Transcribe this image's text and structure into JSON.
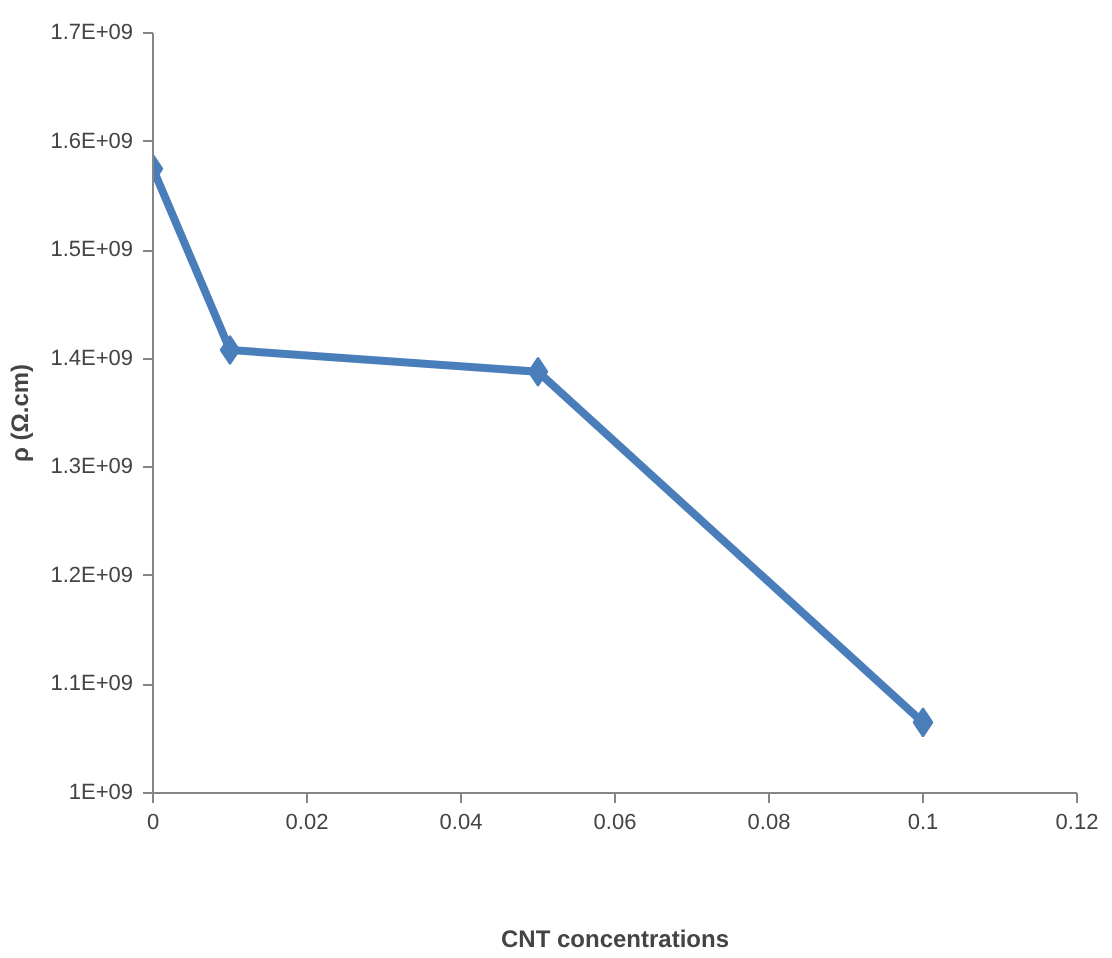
{
  "chart_data": {
    "type": "line",
    "xlabel": "CNT concentrations",
    "ylabel": "ρ (Ω.cm)",
    "x": [
      0,
      0.01,
      0.05,
      0.1
    ],
    "series": [
      {
        "color": "#4a7ebb",
        "values": [
          1575000000,
          1408000000,
          1388000000,
          1065000000
        ]
      }
    ],
    "marker": "diamond",
    "line_style": "solid",
    "grid": false,
    "xlim": [
      0,
      0.12
    ],
    "xticks": [
      0,
      0.02,
      0.04,
      0.06,
      0.08,
      0.1,
      0.12
    ],
    "ylim": [
      1000000000,
      1700000000
    ],
    "yticks": [
      {
        "value": 1000000000,
        "label": "1E+09"
      },
      {
        "value": 1100000000,
        "label": "1.1E+09"
      },
      {
        "value": 1200000000,
        "label": "1.2E+09"
      },
      {
        "value": 1300000000,
        "label": "1.3E+09"
      },
      {
        "value": 1400000000,
        "label": "1.4E+09"
      },
      {
        "value": 1500000000,
        "label": "1.5E+09"
      },
      {
        "value": 1600000000,
        "label": "1.6E+09"
      },
      {
        "value": 1700000000,
        "label": "1.7E+09"
      }
    ]
  }
}
